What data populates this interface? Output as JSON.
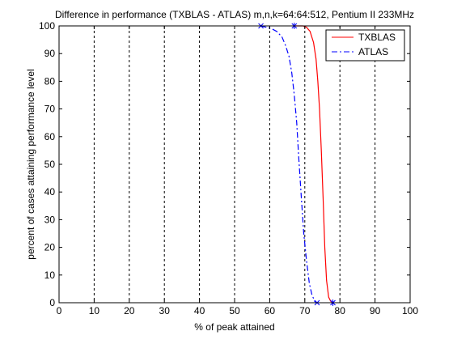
{
  "chart_data": {
    "type": "line",
    "title": "Difference in performance (TXBLAS - ATLAS) m,n,k=64:64:512, Pentium II 233MHz",
    "xlabel": "% of peak attained",
    "ylabel": "percent of cases attaining performance level",
    "xlim": [
      0,
      100
    ],
    "ylim": [
      0,
      100
    ],
    "x_ticks": [
      0,
      10,
      20,
      30,
      40,
      50,
      60,
      70,
      80,
      90,
      100
    ],
    "y_ticks": [
      0,
      10,
      20,
      30,
      40,
      50,
      60,
      70,
      80,
      90,
      100
    ],
    "grid": "vertical dotted",
    "legend_position": "top-right",
    "series": [
      {
        "name": "TXBLAS",
        "color": "#ff0000",
        "style": "solid",
        "marker_color": "#0000ff",
        "x": [
          67.0,
          69.5,
          70.5,
          71.5,
          72.5,
          73.2,
          73.7,
          74.2,
          74.7,
          75.2,
          75.7,
          76.2,
          76.8,
          77.4,
          78.0
        ],
        "y": [
          100,
          100,
          99.5,
          98,
          94,
          88,
          80,
          70,
          55,
          38,
          20,
          8,
          2,
          0.5,
          0
        ],
        "markers": [
          [
            67.0,
            100
          ],
          [
            78.0,
            0
          ]
        ]
      },
      {
        "name": "ATLAS",
        "color": "#0000ff",
        "style": "dashdot",
        "marker_color": "#0000ff",
        "x": [
          57.5,
          59.0,
          60.5,
          62.0,
          63.5,
          64.5,
          65.5,
          66.3,
          67.0,
          67.7,
          68.3,
          69.0,
          69.7,
          70.5,
          71.3,
          72.0,
          72.8,
          73.5
        ],
        "y": [
          100,
          99.5,
          99,
          98,
          96,
          93,
          89,
          83,
          75,
          65,
          52,
          38,
          25,
          15,
          7,
          3,
          0.5,
          0
        ],
        "markers": [
          [
            57.5,
            100
          ],
          [
            73.5,
            0
          ]
        ]
      }
    ]
  }
}
